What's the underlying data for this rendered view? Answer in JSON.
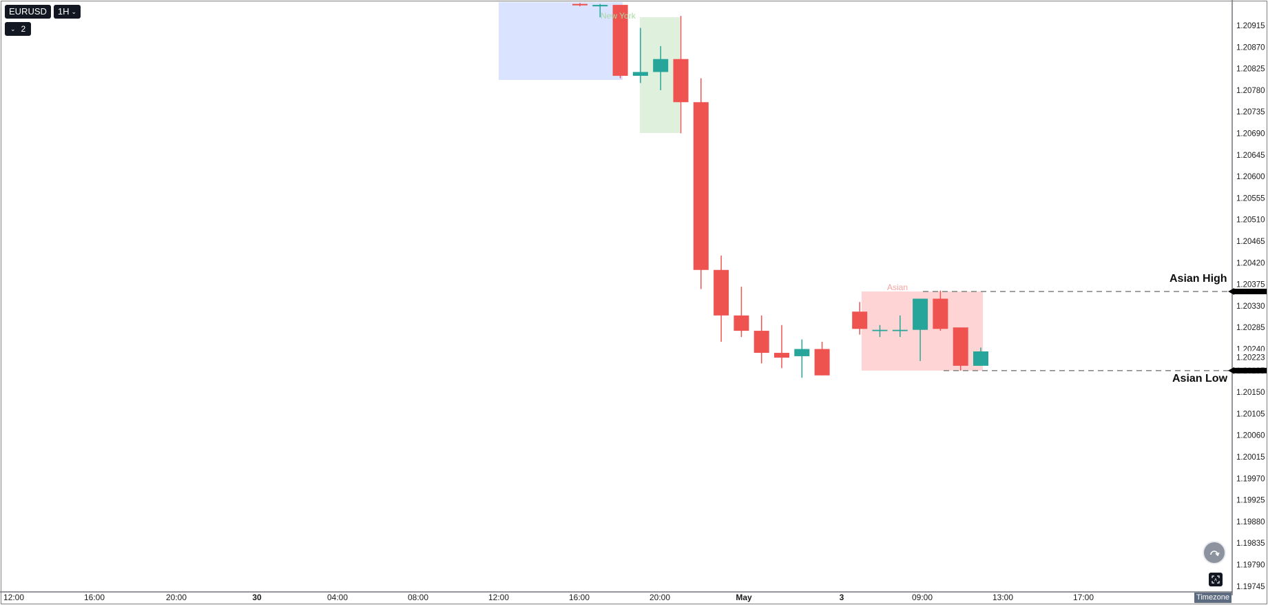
{
  "toolbar": {
    "symbol": "EURUSD",
    "timeframe": "1H",
    "layers_count": "2",
    "timezone_label": "Timezone"
  },
  "colors": {
    "up": "#26a69a",
    "down": "#ef5350",
    "newyork_box": "#d6e0ff",
    "london_box": "#dcefd9",
    "asian_box": "#ffcfcf"
  },
  "sessions": {
    "newyork_label": "New York",
    "asian_label": "Asian"
  },
  "levels": {
    "asian_high_label": "Asian High",
    "asian_low_label": "Asian Low",
    "current_price_label": "1.20223"
  },
  "chart_data": {
    "type": "candlestick",
    "title": "",
    "xlabel": "",
    "ylabel": "",
    "x_ticks": [
      "12:00",
      "16:00",
      "20:00",
      "30",
      "04:00",
      "08:00",
      "12:00",
      "16:00",
      "20:00",
      "May",
      "3",
      "09:00",
      "13:00",
      "17:00"
    ],
    "y_ticks": [
      "1.20915",
      "1.20870",
      "1.20825",
      "1.20780",
      "1.20735",
      "1.20690",
      "1.20645",
      "1.20600",
      "1.20555",
      "1.20510",
      "1.20465",
      "1.20420",
      "1.20375",
      "1.20330",
      "1.20285",
      "1.20240",
      "1.20195",
      "1.20150",
      "1.20105",
      "1.20060",
      "1.20015",
      "1.19970",
      "1.19925",
      "1.19880",
      "1.19835",
      "1.19790",
      "1.19745"
    ],
    "ylim": [
      1.1973,
      1.2096
    ],
    "candles": [
      {
        "open": 1.2096,
        "high": 1.20962,
        "low": 1.20955,
        "close": 1.20957
      },
      {
        "open": 1.20955,
        "high": 1.2096,
        "low": 1.20932,
        "close": 1.20958
      },
      {
        "open": 1.20958,
        "high": 1.20958,
        "low": 1.20805,
        "close": 1.2081
      },
      {
        "open": 1.2081,
        "high": 1.2091,
        "low": 1.20795,
        "close": 1.20818
      },
      {
        "open": 1.20818,
        "high": 1.20872,
        "low": 1.2078,
        "close": 1.20845
      },
      {
        "open": 1.20845,
        "high": 1.20935,
        "low": 1.2069,
        "close": 1.20755
      },
      {
        "open": 1.20755,
        "high": 1.20805,
        "low": 1.20365,
        "close": 1.20405
      },
      {
        "open": 1.20405,
        "high": 1.20435,
        "low": 1.20255,
        "close": 1.2031
      },
      {
        "open": 1.2031,
        "high": 1.2037,
        "low": 1.20265,
        "close": 1.20278
      },
      {
        "open": 1.20278,
        "high": 1.2031,
        "low": 1.2021,
        "close": 1.20232
      },
      {
        "open": 1.20232,
        "high": 1.2029,
        "low": 1.202,
        "close": 1.20222
      },
      {
        "open": 1.20225,
        "high": 1.2026,
        "low": 1.2018,
        "close": 1.2024
      },
      {
        "open": 1.2024,
        "high": 1.20255,
        "low": 1.20185,
        "close": 1.20185
      },
      {
        "open": 1.20318,
        "high": 1.20338,
        "low": 1.2027,
        "close": 1.20282
      },
      {
        "open": 1.2028,
        "high": 1.2029,
        "low": 1.20265,
        "close": 1.2028
      },
      {
        "open": 1.2028,
        "high": 1.2031,
        "low": 1.20265,
        "close": 1.2028
      },
      {
        "open": 1.2028,
        "high": 1.20345,
        "low": 1.20215,
        "close": 1.20345
      },
      {
        "open": 1.20345,
        "high": 1.20362,
        "low": 1.20278,
        "close": 1.20282
      },
      {
        "open": 1.20285,
        "high": 1.20285,
        "low": 1.20195,
        "close": 1.20205
      },
      {
        "open": 1.20205,
        "high": 1.20243,
        "low": 1.20205,
        "close": 1.20235
      }
    ],
    "asian_high": 1.2036,
    "asian_low": 1.20195,
    "current_price": 1.20223,
    "grid": false
  }
}
